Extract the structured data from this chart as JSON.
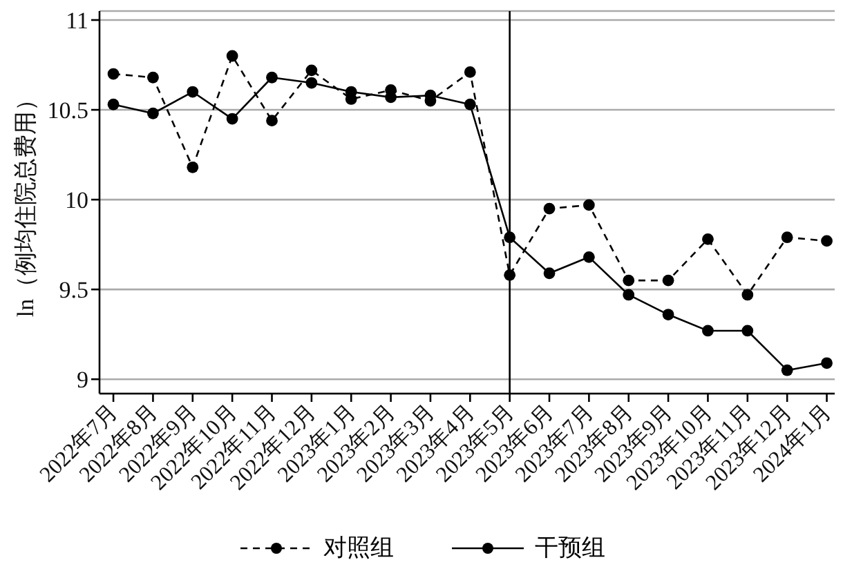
{
  "chart_data": {
    "type": "line",
    "ylabel": "ln（例均住院总费用）",
    "categories": [
      "2022年7月",
      "2022年8月",
      "2022年9月",
      "2022年10月",
      "2022年11月",
      "2022年12月",
      "2023年1月",
      "2023年2月",
      "2023年3月",
      "2023年4月",
      "2023年5月",
      "2023年6月",
      "2023年7月",
      "2023年8月",
      "2023年9月",
      "2023年10月",
      "2023年11月",
      "2023年12月",
      "2024年1月"
    ],
    "series": [
      {
        "name": "对照组",
        "color": "#000000",
        "line_style": "dashed",
        "values": [
          10.7,
          10.68,
          10.18,
          10.8,
          10.44,
          10.72,
          10.56,
          10.61,
          10.55,
          10.71,
          9.58,
          9.95,
          9.97,
          9.55,
          9.55,
          9.78,
          9.47,
          9.79,
          9.77
        ]
      },
      {
        "name": "干预组",
        "color": "#000000",
        "line_style": "solid",
        "values": [
          10.53,
          10.48,
          10.6,
          10.45,
          10.68,
          10.65,
          10.6,
          10.57,
          10.58,
          10.53,
          9.79,
          9.59,
          9.68,
          9.47,
          9.36,
          9.27,
          9.27,
          9.05,
          9.09
        ]
      }
    ],
    "ylim": [
      8.92,
      11.05
    ],
    "yticks": [
      9,
      9.5,
      10,
      10.5,
      11
    ],
    "grid": "y",
    "legend": "bottom",
    "marker": "circle",
    "ref_lines": [
      {
        "axis": "x",
        "value": "2023年5月",
        "color": "#000000"
      }
    ]
  }
}
